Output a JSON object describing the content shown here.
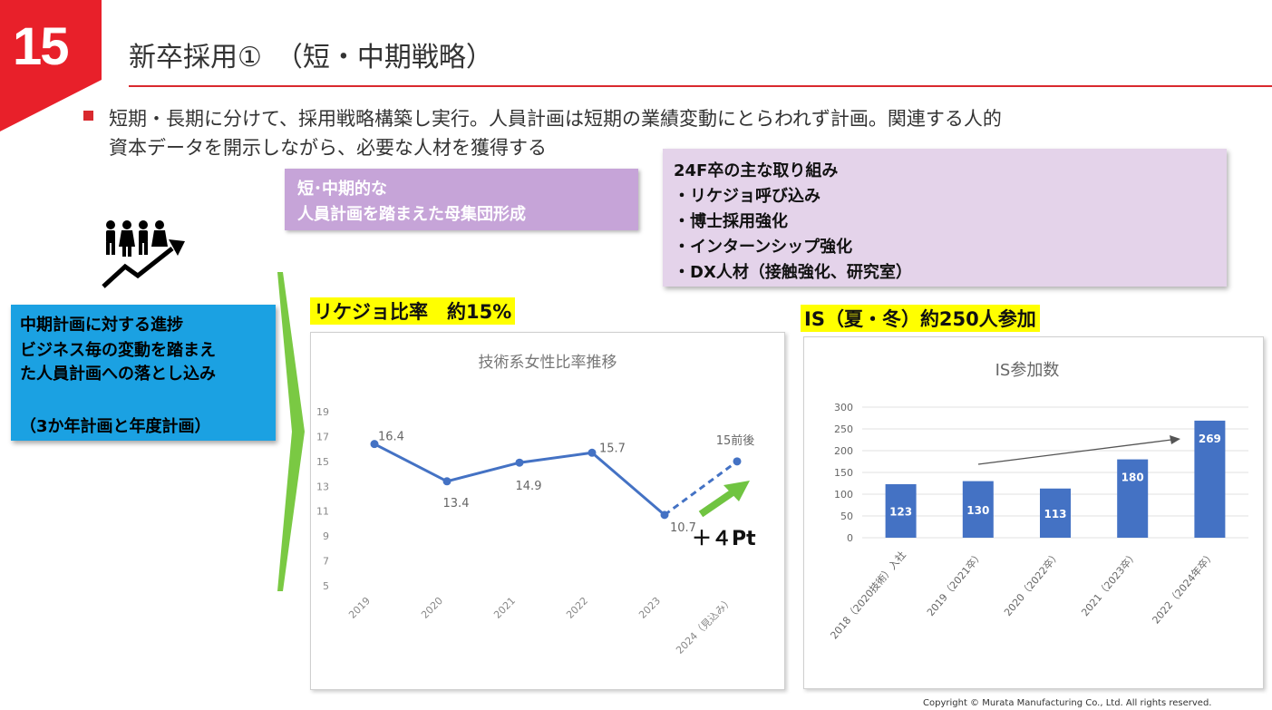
{
  "slide_number": "15",
  "title": "新卒採用①　（短・中期戦略）",
  "lead": {
    "line1": "短期・長期に分けて、採用戦略構築し実行。人員計画は短期の業績変動にとらわれず計画。関連する人的",
    "line2": "資本データを開示しながら、必要な人材を獲得する"
  },
  "left_box": {
    "line1": "中期計画に対する進捗",
    "line2": "ビジネス毎の変動を踏まえ",
    "line3": "た人員計画への落とし込み",
    "line4": "（3か年計画と年度計画）"
  },
  "population_box": {
    "line1": "短･中期的な",
    "line2": "人員計画を踏まえた母集団形成"
  },
  "initiatives": {
    "heading": "24F卒の主な取り組み",
    "items": [
      "・リケジョ呼び込み",
      "・博士採用強化",
      "・インターンシップ強化",
      "・DX人材（接触強化、研究室）"
    ]
  },
  "chart1_heading": "リケジョ比率　約15%",
  "chart2_heading": "IS（夏・冬）約250人参加",
  "chart1_annotation": "＋４Pt",
  "copyright": "Copyright © Murata Manufacturing Co., Ltd. All rights reserved.",
  "colors": {
    "accent_red": "#d9292e",
    "series_blue": "#4472c4",
    "box_blue": "#1ba1e2",
    "arrow_green": "#70c441"
  },
  "chart_data": [
    {
      "type": "line",
      "title": "技術系女性比率推移",
      "categories": [
        "2019",
        "2020",
        "2021",
        "2022",
        "2023",
        "2024（見込み）"
      ],
      "series": [
        {
          "values": [
            16.4,
            13.4,
            14.9,
            15.7,
            10.7,
            15
          ],
          "data_labels": [
            "16.4",
            "13.4",
            "14.9",
            "15.7",
            "10.7",
            "15前後"
          ],
          "forecast_from_index": 4
        }
      ],
      "y_ticks": [
        5,
        7,
        9,
        11,
        13,
        15,
        17,
        19
      ],
      "ylim": [
        5,
        19
      ],
      "grid": false
    },
    {
      "type": "bar",
      "title": "IS参加数",
      "categories": [
        "2018（2020技術）入社",
        "2019（2021卒）",
        "2020（2022卒）",
        "2021（2023卒）",
        "2022（2024年卒）"
      ],
      "values": [
        123,
        130,
        113,
        180,
        269
      ],
      "y_ticks": [
        0,
        50,
        100,
        150,
        200,
        250,
        300
      ],
      "ylim": [
        0,
        300
      ],
      "grid": true,
      "trend_arrow": true
    }
  ]
}
